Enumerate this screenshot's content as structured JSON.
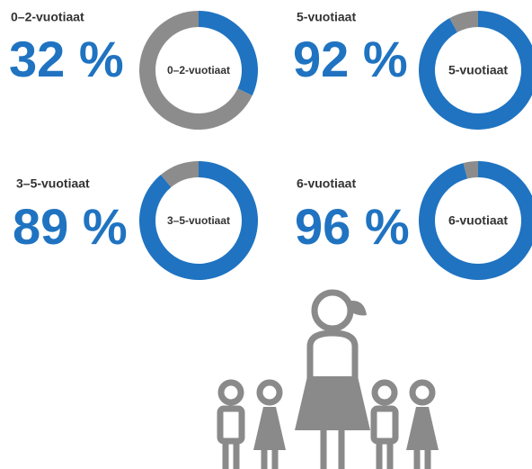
{
  "chart_data": [
    {
      "type": "pie",
      "title": "0–2-vuotiaat",
      "center_label": "0–2-vuotiaat",
      "values": [
        32,
        68
      ],
      "value_labels": [
        "32 %",
        null
      ],
      "colors": [
        "#1f73c1",
        "#8c8c8c"
      ]
    },
    {
      "type": "pie",
      "title": "5-vuotiaat",
      "center_label": "5-vuotiaat",
      "values": [
        92,
        8
      ],
      "value_labels": [
        "92 %",
        null
      ],
      "colors": [
        "#1f73c1",
        "#8c8c8c"
      ]
    },
    {
      "type": "pie",
      "title": "3–5-vuotiaat",
      "center_label": "3–5-vuotiaat",
      "values": [
        89,
        11
      ],
      "value_labels": [
        "89 %",
        null
      ],
      "colors": [
        "#1f73c1",
        "#8c8c8c"
      ]
    },
    {
      "type": "pie",
      "title": "6-vuotiaat",
      "center_label": "6-vuotiaat",
      "values": [
        96,
        4
      ],
      "value_labels": [
        "96 %",
        null
      ],
      "colors": [
        "#1f73c1",
        "#8c8c8c"
      ]
    }
  ]
}
